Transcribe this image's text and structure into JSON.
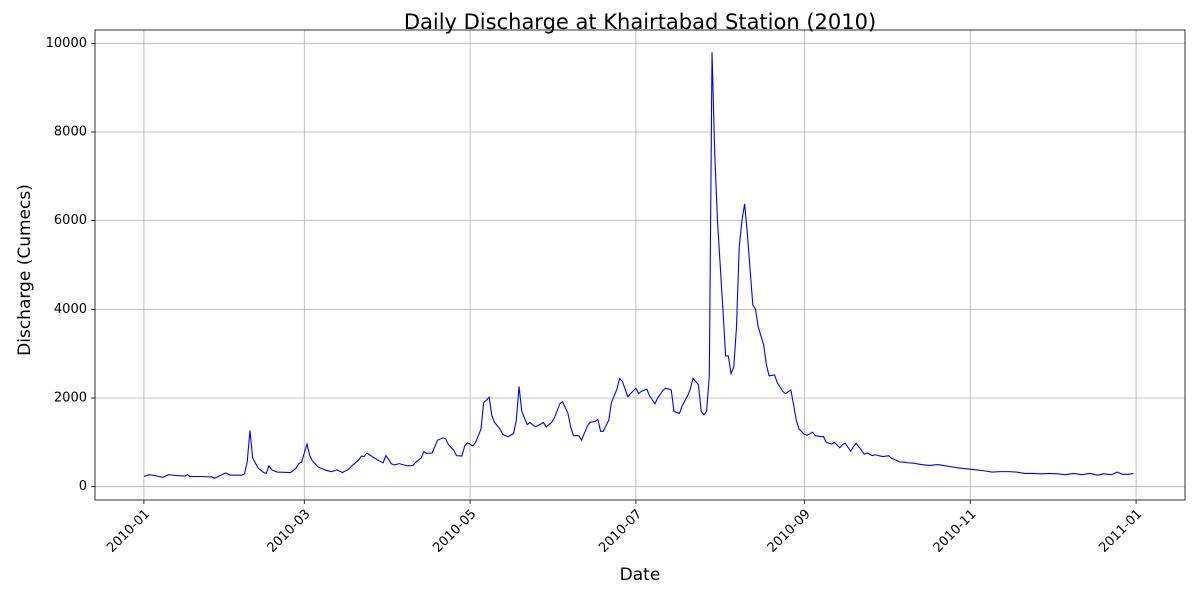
{
  "chart_data": {
    "type": "line",
    "title": "Daily Discharge at Khairtabad Station (2010)",
    "x_label": "Date",
    "y_label": "Discharge (Cumecs)",
    "color": "#0000ff",
    "grid": true,
    "xlim": [
      14592,
      14993
    ],
    "ylim": [
      -300,
      10300
    ],
    "xticks": [
      {
        "value": 14610,
        "label": "2010-01"
      },
      {
        "value": 14669,
        "label": "2010-03"
      },
      {
        "value": 14730,
        "label": "2010-05"
      },
      {
        "value": 14791,
        "label": "2010-07"
      },
      {
        "value": 14853,
        "label": "2010-09"
      },
      {
        "value": 14914,
        "label": "2010-11"
      },
      {
        "value": 14975,
        "label": "2011-01"
      }
    ],
    "yticks": [
      0,
      2000,
      4000,
      6000,
      8000,
      10000
    ],
    "x": [
      14610,
      14612,
      14614,
      14617,
      14619,
      14622,
      14625,
      14626,
      14627,
      14631,
      14635,
      14636,
      14638,
      14640,
      14642,
      14646,
      14647,
      14648,
      14649,
      14650,
      14652,
      14654,
      14655,
      14656,
      14657,
      14659,
      14664,
      14666,
      14667,
      14668,
      14670,
      14671,
      14672,
      14674,
      14675,
      14677,
      14679,
      14681,
      14683,
      14685,
      14687,
      14689,
      14690,
      14691,
      14692,
      14693,
      14695,
      14696,
      14698,
      14699,
      14700,
      14701,
      14702,
      14704,
      14705,
      14707,
      14709,
      14710,
      14712,
      14713,
      14714,
      14716,
      14717,
      14718,
      14720,
      14721,
      14722,
      14724,
      14725,
      14727,
      14728,
      14729,
      14731,
      14732,
      14734,
      14735,
      14736,
      14737,
      14738,
      14739,
      14741,
      14742,
      14744,
      14746,
      14747,
      14748,
      14749,
      14751,
      14752,
      14754,
      14755,
      14757,
      14758,
      14760,
      14761,
      14763,
      14764,
      14766,
      14767,
      14768,
      14770,
      14771,
      14773,
      14774,
      14776,
      14777,
      14778,
      14779,
      14781,
      14782,
      14784,
      14785,
      14786,
      14788,
      14789,
      14791,
      14792,
      14793,
      14795,
      14796,
      14798,
      14799,
      14801,
      14802,
      14804,
      14805,
      14807,
      14808,
      14810,
      14811,
      14812,
      14814,
      14815,
      14816,
      14817,
      14818,
      14819,
      14820,
      14821,
      14823,
      14824,
      14825,
      14826,
      14827,
      14828,
      14829,
      14830,
      14831,
      14832,
      14834,
      14835,
      14836,
      14838,
      14839,
      14840,
      14842,
      14843,
      14845,
      14846,
      14848,
      14849,
      14850,
      14851,
      14853,
      14854,
      14856,
      14857,
      14859,
      14860,
      14861,
      14863,
      14864,
      14866,
      14867,
      14868,
      14870,
      14871,
      14872,
      14874,
      14875,
      14876,
      14878,
      14879,
      14881,
      14882,
      14884,
      14885,
      14886,
      14888,
      14890,
      14891,
      14893,
      14896,
      14899,
      14902,
      14904,
      14907,
      14910,
      14913,
      14916,
      14919,
      14922,
      14925,
      14928,
      14931,
      14934,
      14937,
      14940,
      14943,
      14946,
      14949,
      14952,
      14955,
      14958,
      14961,
      14963,
      14966,
      14968,
      14970,
      14972,
      14974
    ],
    "values": [
      230,
      270,
      250,
      210,
      270,
      250,
      240,
      270,
      230,
      230,
      220,
      190,
      250,
      310,
      260,
      260,
      290,
      560,
      1270,
      650,
      420,
      320,
      300,
      470,
      380,
      330,
      320,
      420,
      520,
      560,
      960,
      700,
      580,
      450,
      420,
      370,
      340,
      380,
      320,
      380,
      500,
      600,
      690,
      680,
      760,
      720,
      640,
      600,
      540,
      700,
      620,
      520,
      490,
      520,
      500,
      470,
      480,
      550,
      650,
      790,
      750,
      760,
      900,
      1050,
      1100,
      1080,
      950,
      820,
      700,
      690,
      920,
      990,
      920,
      1000,
      1300,
      1900,
      1950,
      2020,
      1600,
      1450,
      1300,
      1180,
      1130,
      1200,
      1500,
      2260,
      1700,
      1400,
      1450,
      1350,
      1380,
      1450,
      1350,
      1450,
      1550,
      1870,
      1920,
      1650,
      1350,
      1150,
      1150,
      1050,
      1350,
      1450,
      1470,
      1520,
      1250,
      1250,
      1500,
      1900,
      2200,
      2440,
      2380,
      2030,
      2100,
      2220,
      2100,
      2150,
      2200,
      2050,
      1870,
      2000,
      2180,
      2220,
      2180,
      1700,
      1650,
      1820,
      2050,
      2200,
      2440,
      2300,
      1700,
      1620,
      1700,
      2500,
      9800,
      7500,
      6000,
      4000,
      2950,
      2950,
      2550,
      2700,
      3600,
      5400,
      6000,
      6380,
      5700,
      4100,
      4000,
      3600,
      3200,
      2750,
      2500,
      2520,
      2350,
      2150,
      2100,
      2180,
      1850,
      1500,
      1300,
      1180,
      1160,
      1230,
      1150,
      1130,
      1130,
      1000,
      960,
      1000,
      880,
      950,
      980,
      800,
      900,
      980,
      820,
      730,
      760,
      700,
      720,
      690,
      680,
      700,
      640,
      620,
      560,
      550,
      540,
      530,
      500,
      480,
      500,
      480,
      450,
      420,
      400,
      380,
      360,
      330,
      340,
      340,
      330,
      300,
      300,
      290,
      300,
      290,
      270,
      300,
      270,
      300,
      260,
      290,
      270,
      330,
      280,
      280,
      300
    ]
  }
}
